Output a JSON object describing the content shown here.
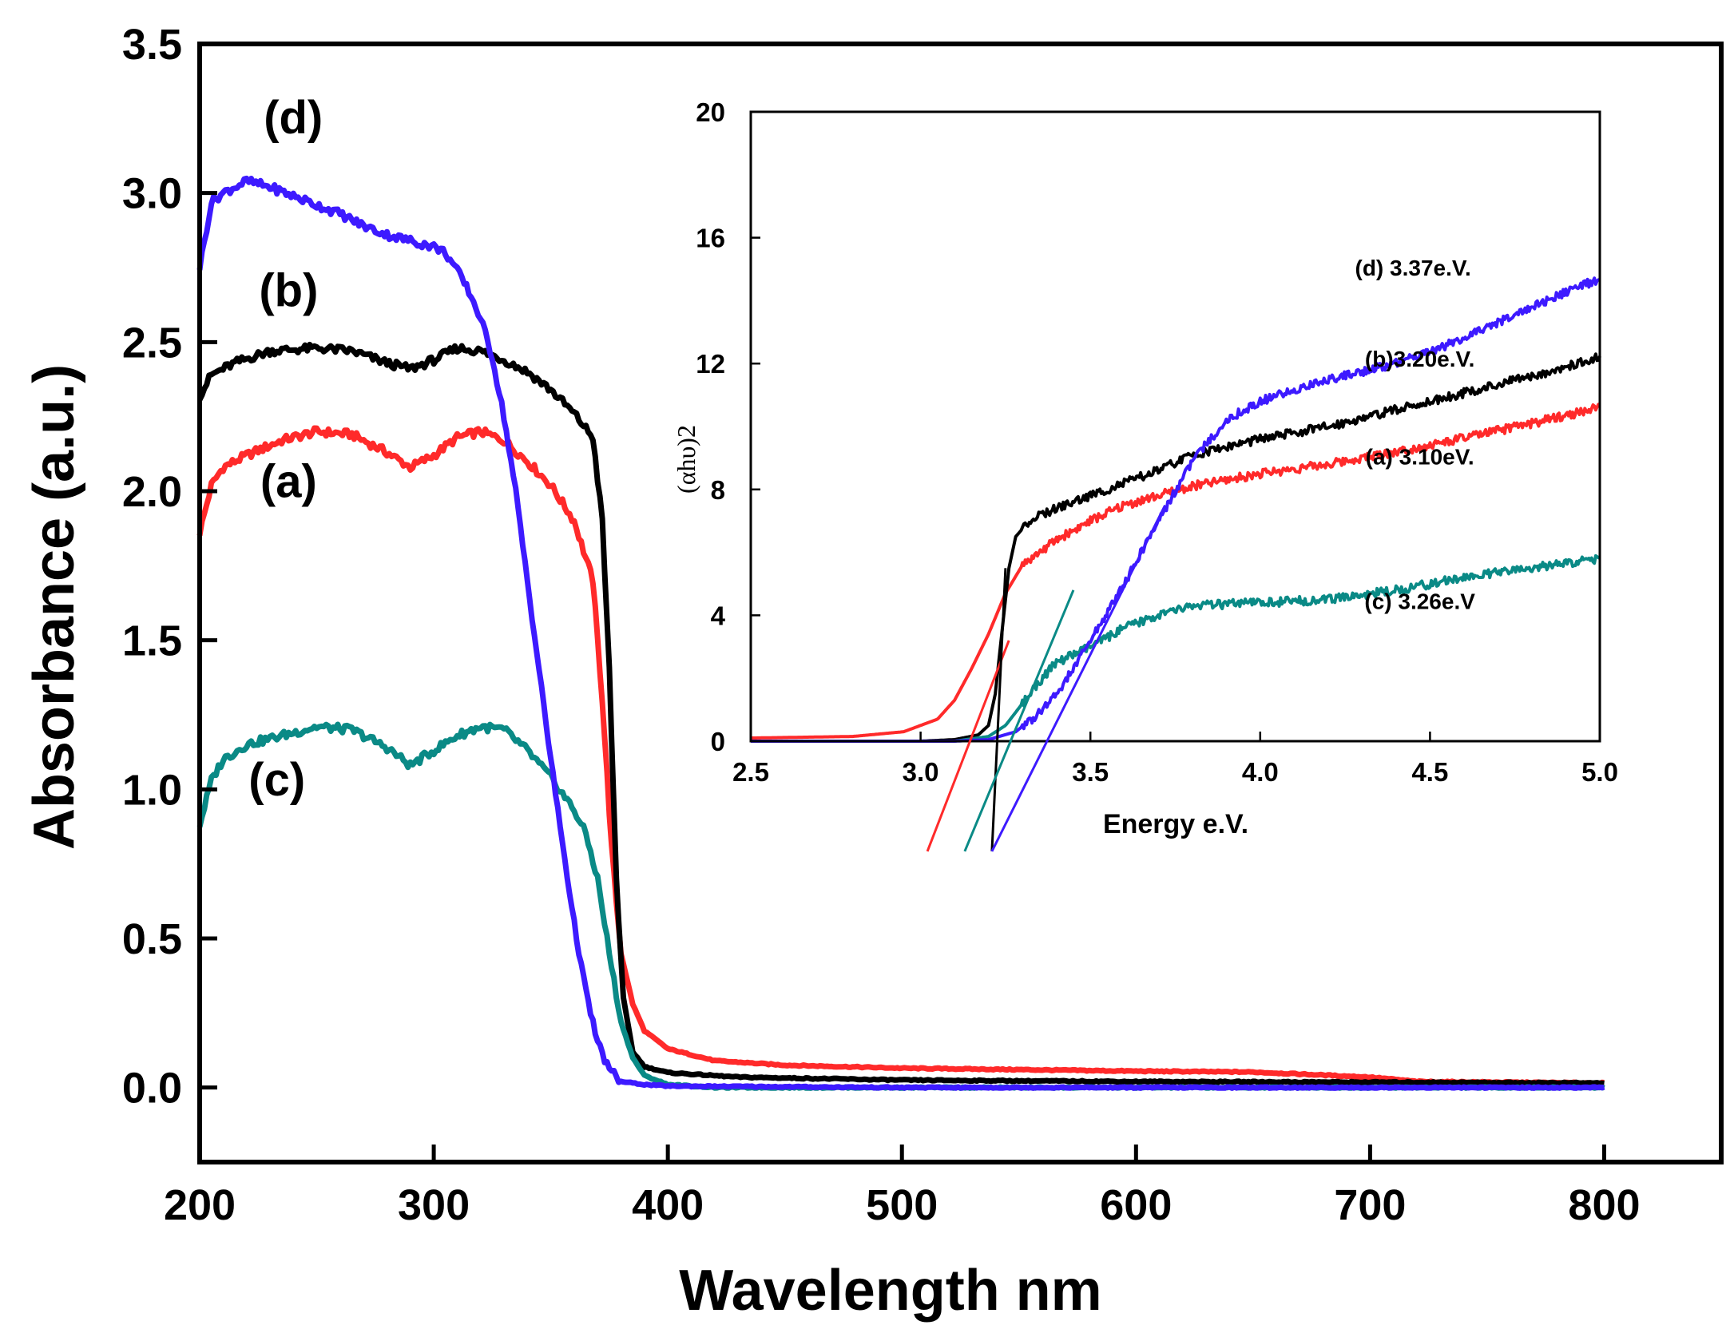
{
  "chart_data": {
    "main": {
      "type": "line",
      "xlabel": "Wavelength nm",
      "ylabel": "Absorbance (a.u.)",
      "xlim": [
        200,
        850
      ],
      "ylim": [
        -0.25,
        3.5
      ],
      "x_ticks": [
        "200",
        "300",
        "400",
        "500",
        "600",
        "700",
        "800"
      ],
      "y_ticks": [
        "0.0",
        "0.5",
        "1.0",
        "1.5",
        "2.0",
        "2.5",
        "3.0",
        "3.5"
      ],
      "series": [
        {
          "name": "(a)",
          "color": "#ff2a2a",
          "points": [
            [
              200,
              1.86
            ],
            [
              205,
              2.02
            ],
            [
              210,
              2.08
            ],
            [
              220,
              2.12
            ],
            [
              235,
              2.17
            ],
            [
              250,
              2.2
            ],
            [
              265,
              2.19
            ],
            [
              280,
              2.13
            ],
            [
              290,
              2.08
            ],
            [
              300,
              2.12
            ],
            [
              310,
              2.18
            ],
            [
              320,
              2.2
            ],
            [
              330,
              2.17
            ],
            [
              340,
              2.1
            ],
            [
              350,
              2.02
            ],
            [
              360,
              1.9
            ],
            [
              368,
              1.7
            ],
            [
              372,
              1.3
            ],
            [
              376,
              0.8
            ],
            [
              380,
              0.45
            ],
            [
              385,
              0.28
            ],
            [
              390,
              0.19
            ],
            [
              400,
              0.13
            ],
            [
              420,
              0.09
            ],
            [
              450,
              0.075
            ],
            [
              500,
              0.065
            ],
            [
              600,
              0.055
            ],
            [
              650,
              0.052
            ],
            [
              700,
              0.035
            ],
            [
              720,
              0.02
            ],
            [
              800,
              0.015
            ]
          ]
        },
        {
          "name": "(b)",
          "color": "#000000",
          "points": [
            [
              200,
              2.32
            ],
            [
              205,
              2.39
            ],
            [
              215,
              2.43
            ],
            [
              230,
              2.47
            ],
            [
              250,
              2.48
            ],
            [
              265,
              2.47
            ],
            [
              280,
              2.43
            ],
            [
              290,
              2.41
            ],
            [
              300,
              2.44
            ],
            [
              310,
              2.48
            ],
            [
              320,
              2.47
            ],
            [
              330,
              2.44
            ],
            [
              340,
              2.4
            ],
            [
              350,
              2.34
            ],
            [
              360,
              2.26
            ],
            [
              368,
              2.18
            ],
            [
              372,
              1.9
            ],
            [
              375,
              1.4
            ],
            [
              378,
              0.7
            ],
            [
              381,
              0.3
            ],
            [
              385,
              0.12
            ],
            [
              390,
              0.07
            ],
            [
              400,
              0.05
            ],
            [
              430,
              0.035
            ],
            [
              500,
              0.025
            ],
            [
              600,
              0.02
            ],
            [
              700,
              0.018
            ],
            [
              800,
              0.015
            ]
          ]
        },
        {
          "name": "(c)",
          "color": "#0a8a86",
          "points": [
            [
              200,
              0.88
            ],
            [
              205,
              1.03
            ],
            [
              210,
              1.1
            ],
            [
              220,
              1.15
            ],
            [
              235,
              1.18
            ],
            [
              250,
              1.21
            ],
            [
              265,
              1.2
            ],
            [
              280,
              1.14
            ],
            [
              290,
              1.08
            ],
            [
              300,
              1.13
            ],
            [
              310,
              1.18
            ],
            [
              320,
              1.21
            ],
            [
              330,
              1.2
            ],
            [
              340,
              1.13
            ],
            [
              350,
              1.04
            ],
            [
              360,
              0.93
            ],
            [
              365,
              0.85
            ],
            [
              370,
              0.7
            ],
            [
              375,
              0.45
            ],
            [
              380,
              0.22
            ],
            [
              385,
              0.1
            ],
            [
              390,
              0.04
            ],
            [
              400,
              0.01
            ],
            [
              420,
              0.0
            ],
            [
              500,
              0.0
            ],
            [
              800,
              0.0
            ]
          ]
        },
        {
          "name": "(d)",
          "color": "#3d1aff",
          "points": [
            [
              200,
              2.75
            ],
            [
              205,
              2.97
            ],
            [
              210,
              3.0
            ],
            [
              220,
              3.04
            ],
            [
              230,
              3.02
            ],
            [
              240,
              2.99
            ],
            [
              250,
              2.96
            ],
            [
              260,
              2.93
            ],
            [
              270,
              2.89
            ],
            [
              280,
              2.86
            ],
            [
              290,
              2.84
            ],
            [
              300,
              2.82
            ],
            [
              305,
              2.8
            ],
            [
              310,
              2.74
            ],
            [
              315,
              2.67
            ],
            [
              320,
              2.58
            ],
            [
              325,
              2.45
            ],
            [
              330,
              2.25
            ],
            [
              335,
              2.0
            ],
            [
              340,
              1.7
            ],
            [
              345,
              1.4
            ],
            [
              350,
              1.1
            ],
            [
              355,
              0.82
            ],
            [
              360,
              0.55
            ],
            [
              365,
              0.32
            ],
            [
              370,
              0.15
            ],
            [
              375,
              0.06
            ],
            [
              380,
              0.02
            ],
            [
              390,
              0.01
            ],
            [
              400,
              0.005
            ],
            [
              500,
              0.0
            ],
            [
              800,
              0.0
            ]
          ]
        }
      ],
      "labels": [
        {
          "text": "(d)",
          "x": 240,
          "y": 3.2
        },
        {
          "text": "(b)",
          "x": 238,
          "y": 2.62
        },
        {
          "text": "(a)",
          "x": 238,
          "y": 1.98
        },
        {
          "text": "(c)",
          "x": 233,
          "y": 0.98
        }
      ]
    },
    "inset": {
      "type": "line",
      "xlabel": "Energy e.V.",
      "ylabel": "(αhυ)2",
      "xlim": [
        2.5,
        5.0
      ],
      "ylim": [
        0,
        20
      ],
      "x_ticks": [
        "2.5",
        "3.0",
        "3.5",
        "4.0",
        "4.5",
        "5.0"
      ],
      "y_ticks": [
        "0",
        "4",
        "8",
        "12",
        "16",
        "20"
      ],
      "series": [
        {
          "name": "(a) 3.10eV.",
          "color": "#ff2a2a",
          "points": [
            [
              2.5,
              0.1
            ],
            [
              2.8,
              0.15
            ],
            [
              2.95,
              0.3
            ],
            [
              3.05,
              0.7
            ],
            [
              3.1,
              1.3
            ],
            [
              3.15,
              2.3
            ],
            [
              3.2,
              3.4
            ],
            [
              3.25,
              4.7
            ],
            [
              3.3,
              5.6
            ],
            [
              3.4,
              6.4
            ],
            [
              3.5,
              7.0
            ],
            [
              3.6,
              7.5
            ],
            [
              3.7,
              7.8
            ],
            [
              3.8,
              8.1
            ],
            [
              4.0,
              8.5
            ],
            [
              4.2,
              8.8
            ],
            [
              4.5,
              9.4
            ],
            [
              4.8,
              10.1
            ],
            [
              5.0,
              10.6
            ]
          ]
        },
        {
          "name": "(b)3.20e.V.",
          "color": "#000000",
          "points": [
            [
              2.5,
              0.0
            ],
            [
              3.0,
              0.0
            ],
            [
              3.1,
              0.05
            ],
            [
              3.17,
              0.2
            ],
            [
              3.2,
              0.5
            ],
            [
              3.22,
              1.5
            ],
            [
              3.24,
              3.5
            ],
            [
              3.26,
              5.5
            ],
            [
              3.28,
              6.5
            ],
            [
              3.32,
              7.0
            ],
            [
              3.4,
              7.4
            ],
            [
              3.5,
              7.8
            ],
            [
              3.6,
              8.2
            ],
            [
              3.7,
              8.6
            ],
            [
              3.8,
              9.1
            ],
            [
              4.0,
              9.6
            ],
            [
              4.2,
              10.0
            ],
            [
              4.5,
              10.8
            ],
            [
              4.8,
              11.6
            ],
            [
              5.0,
              12.2
            ]
          ]
        },
        {
          "name": "(c) 3.26e.V",
          "color": "#0a8a86",
          "points": [
            [
              2.5,
              0.0
            ],
            [
              3.1,
              0.0
            ],
            [
              3.2,
              0.15
            ],
            [
              3.25,
              0.5
            ],
            [
              3.3,
              1.2
            ],
            [
              3.35,
              1.9
            ],
            [
              3.4,
              2.5
            ],
            [
              3.5,
              3.0
            ],
            [
              3.6,
              3.6
            ],
            [
              3.7,
              4.0
            ],
            [
              3.8,
              4.3
            ],
            [
              4.0,
              4.4
            ],
            [
              4.2,
              4.5
            ],
            [
              4.4,
              4.8
            ],
            [
              4.6,
              5.2
            ],
            [
              4.8,
              5.5
            ],
            [
              5.0,
              5.8
            ]
          ]
        },
        {
          "name": "(d) 3.37e.V.",
          "color": "#3d1aff",
          "points": [
            [
              2.5,
              0.0
            ],
            [
              3.1,
              0.0
            ],
            [
              3.2,
              0.05
            ],
            [
              3.28,
              0.3
            ],
            [
              3.35,
              0.9
            ],
            [
              3.4,
              1.5
            ],
            [
              3.45,
              2.3
            ],
            [
              3.5,
              3.2
            ],
            [
              3.6,
              5.0
            ],
            [
              3.7,
              7.0
            ],
            [
              3.8,
              8.9
            ],
            [
              3.9,
              10.2
            ],
            [
              4.0,
              10.8
            ],
            [
              4.2,
              11.5
            ],
            [
              4.4,
              12.0
            ],
            [
              4.6,
              12.8
            ],
            [
              4.8,
              13.8
            ],
            [
              5.0,
              14.7
            ]
          ]
        }
      ],
      "tangents": [
        {
          "color": "#ff2a2a",
          "from": [
            3.02,
            -3.5
          ],
          "to": [
            3.26,
            3.2
          ]
        },
        {
          "color": "#000000",
          "from": [
            3.21,
            -3.5
          ],
          "to": [
            3.25,
            5.5
          ]
        },
        {
          "color": "#0a8a86",
          "from": [
            3.13,
            -3.5
          ],
          "to": [
            3.45,
            4.8
          ]
        },
        {
          "color": "#3d1aff",
          "from": [
            3.21,
            -3.5
          ],
          "to": [
            3.72,
            7.5
          ]
        }
      ],
      "labels": [
        {
          "text": "(d) 3.37e.V.",
          "x": 4.45,
          "y": 14.8
        },
        {
          "text": "(b)3.20e.V.",
          "x": 4.47,
          "y": 11.9
        },
        {
          "text": "(a) 3.10eV.",
          "x": 4.47,
          "y": 8.8
        },
        {
          "text": "(c) 3.26e.V",
          "x": 4.47,
          "y": 4.2
        }
      ]
    }
  }
}
